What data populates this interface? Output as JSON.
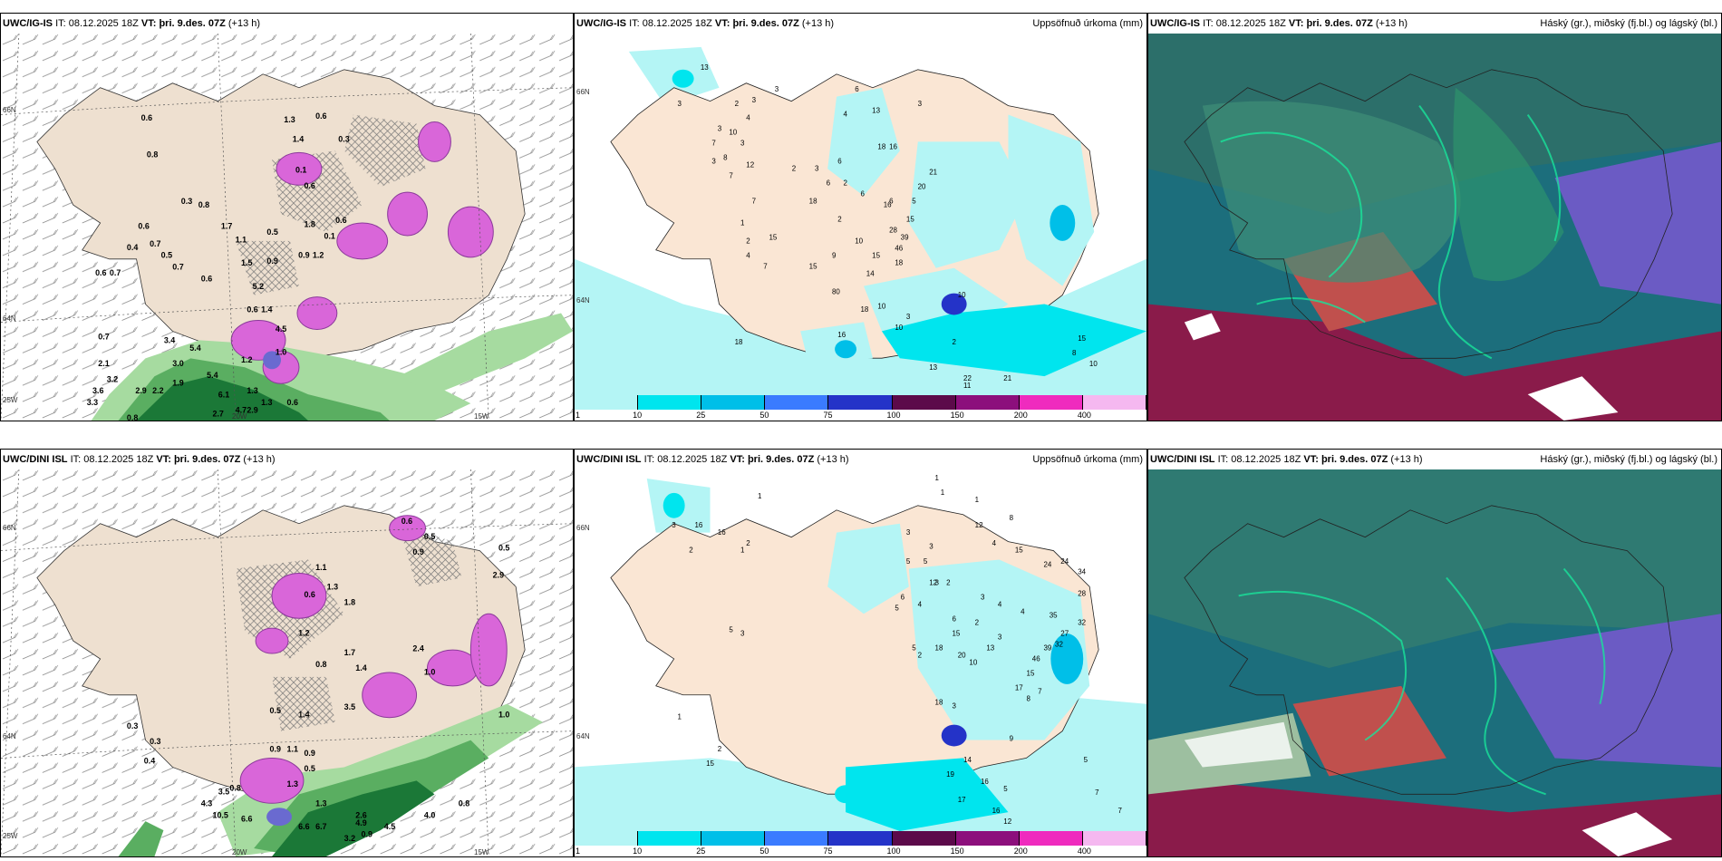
{
  "panels": [
    {
      "id": "p1",
      "model": "UWC/IG-IS",
      "it_label": "IT:",
      "it": "08.12.2025 18Z",
      "vt_label": "VT:",
      "vt": "þri. 9.des. 07Z",
      "lead": "(+13 h)",
      "right": "",
      "axes": {
        "lat_top": "66N",
        "lat_mid": "64N",
        "lon_left": "25W",
        "lon_mid": "20W",
        "lon_right": "15W"
      }
    },
    {
      "id": "p2",
      "model": "UWC/IG-IS",
      "it_label": "IT:",
      "it": "08.12.2025 18Z",
      "vt_label": "VT:",
      "vt": "þri. 9.des. 07Z",
      "lead": "(+13 h)",
      "right": "Uppsöfnuð úrkoma (mm)",
      "axes": {
        "lat_top": "66N",
        "lat_mid": "64N"
      }
    },
    {
      "id": "p3",
      "model": "UWC/IG-IS",
      "it_label": "IT:",
      "it": "08.12.2025 18Z",
      "vt_label": "VT:",
      "vt": "þri. 9.des. 07Z",
      "lead": "(+13 h)",
      "right": "Háský (gr.), miðský (fj.bl.) og lágský (bl.)"
    },
    {
      "id": "p4",
      "model": "UWC/DINI ISL",
      "it_label": "IT:",
      "it": "08.12.2025 18Z",
      "vt_label": "VT:",
      "vt": "þri. 9.des. 07Z",
      "lead": "(+13 h)",
      "right": "",
      "axes": {
        "lat_top": "66N",
        "lat_mid": "64N",
        "lon_left": "25W",
        "lon_mid": "20W",
        "lon_right": "15W"
      }
    },
    {
      "id": "p5",
      "model": "UWC/DINI ISL",
      "it_label": "IT:",
      "it": "08.12.2025 18Z",
      "vt_label": "VT:",
      "vt": "þri. 9.des. 07Z",
      "lead": "(+13 h)",
      "right": "Uppsöfnuð úrkoma (mm)",
      "axes": {
        "lat_top": "66N",
        "lat_mid": "64N"
      }
    },
    {
      "id": "p6",
      "model": "UWC/DINI ISL",
      "it_label": "IT:",
      "it": "08.12.2025 18Z",
      "vt_label": "VT:",
      "vt": "þri. 9.des. 07Z",
      "lead": "(+13 h)",
      "right": "Háský (gr.), miðský (fj.bl.) og lágský (bl.)"
    }
  ],
  "colorbar": {
    "labels": [
      "1",
      "10",
      "25",
      "50",
      "75",
      "100",
      "150",
      "200",
      "400"
    ],
    "colors": [
      "#b4f5f5",
      "#00e5ee",
      "#00bfe8",
      "#3a7bff",
      "#2433c8",
      "#5c0a4a",
      "#8c0f7c",
      "#ef2bbe",
      "#f5b8f0"
    ]
  },
  "precip_labels": {
    "p1": [
      [
        "0.6",
        0.245,
        0.225
      ],
      [
        "0.8",
        0.255,
        0.32
      ],
      [
        "0.3",
        0.315,
        0.44
      ],
      [
        "0.8",
        0.345,
        0.45
      ],
      [
        "1.7",
        0.385,
        0.505
      ],
      [
        "1.1",
        0.41,
        0.54
      ],
      [
        "1.5",
        0.42,
        0.6
      ],
      [
        "0.9",
        0.465,
        0.595
      ],
      [
        "5.2",
        0.44,
        0.66
      ],
      [
        "0.6",
        0.43,
        0.72
      ],
      [
        "1.4",
        0.455,
        0.72
      ],
      [
        "4.5",
        0.48,
        0.77
      ],
      [
        "0.6",
        0.53,
        0.4
      ],
      [
        "1.8",
        0.53,
        0.5
      ],
      [
        "0.5",
        0.465,
        0.52
      ],
      [
        "0.9",
        0.52,
        0.58
      ],
      [
        "1.2",
        0.545,
        0.58
      ],
      [
        "0.1",
        0.565,
        0.53
      ],
      [
        "0.6",
        0.585,
        0.49
      ],
      [
        "0.3",
        0.59,
        0.28
      ],
      [
        "1.3",
        0.495,
        0.23
      ],
      [
        "1.4",
        0.51,
        0.28
      ],
      [
        "0.1",
        0.515,
        0.36
      ],
      [
        "0.6",
        0.55,
        0.22
      ],
      [
        "0.6",
        0.24,
        0.505
      ],
      [
        "0.7",
        0.26,
        0.55
      ],
      [
        "0.5",
        0.28,
        0.58
      ],
      [
        "0.7",
        0.3,
        0.61
      ],
      [
        "0.6",
        0.35,
        0.64
      ],
      [
        "0.6",
        0.165,
        0.625
      ],
      [
        "0.7",
        0.19,
        0.625
      ],
      [
        "0.4",
        0.22,
        0.56
      ],
      [
        "0.7",
        0.17,
        0.79
      ],
      [
        "3.4",
        0.285,
        0.8
      ],
      [
        "5.4",
        0.33,
        0.82
      ],
      [
        "3.0",
        0.3,
        0.86
      ],
      [
        "5.4",
        0.36,
        0.89
      ],
      [
        "6.1",
        0.38,
        0.94
      ],
      [
        "4.7",
        0.41,
        0.98
      ],
      [
        "2.7",
        0.37,
        0.99
      ],
      [
        "2.1",
        0.17,
        0.86
      ],
      [
        "3.2",
        0.185,
        0.9
      ],
      [
        "3.6",
        0.16,
        0.93
      ],
      [
        "3.3",
        0.15,
        0.96
      ],
      [
        "2.9",
        0.235,
        0.93
      ],
      [
        "2.2",
        0.265,
        0.93
      ],
      [
        "1.9",
        0.3,
        0.91
      ],
      [
        "0.8",
        0.22,
        1.0
      ],
      [
        "1.3",
        0.43,
        0.93
      ],
      [
        "2.9",
        0.43,
        0.98
      ],
      [
        "1.3",
        0.455,
        0.96
      ],
      [
        "1.2",
        0.42,
        0.85
      ],
      [
        "1.0",
        0.48,
        0.83
      ],
      [
        "0.6",
        0.5,
        0.96
      ]
    ],
    "p2": [
      [
        "3",
        0.6,
        0.2
      ],
      [
        "13",
        0.22,
        0.1
      ],
      [
        "3",
        0.18,
        0.2
      ],
      [
        "2",
        0.28,
        0.2
      ],
      [
        "3",
        0.24,
        0.36
      ],
      [
        "3",
        0.31,
        0.19
      ],
      [
        "4",
        0.3,
        0.24
      ],
      [
        "3",
        0.35,
        0.16
      ],
      [
        "6",
        0.49,
        0.16
      ],
      [
        "4",
        0.47,
        0.23
      ],
      [
        "13",
        0.52,
        0.22
      ],
      [
        "3",
        0.25,
        0.27
      ],
      [
        "7",
        0.24,
        0.31
      ],
      [
        "8",
        0.26,
        0.35
      ],
      [
        "10",
        0.27,
        0.28
      ],
      [
        "3",
        0.29,
        0.31
      ],
      [
        "12",
        0.3,
        0.37
      ],
      [
        "7",
        0.27,
        0.4
      ],
      [
        "7",
        0.31,
        0.47
      ],
      [
        "2",
        0.38,
        0.38
      ],
      [
        "3",
        0.42,
        0.38
      ],
      [
        "6",
        0.44,
        0.42
      ],
      [
        "2",
        0.47,
        0.42
      ],
      [
        "18",
        0.41,
        0.47
      ],
      [
        "6",
        0.46,
        0.36
      ],
      [
        "6",
        0.5,
        0.45
      ],
      [
        "18",
        0.53,
        0.32
      ],
      [
        "16",
        0.55,
        0.32
      ],
      [
        "2",
        0.46,
        0.52
      ],
      [
        "1",
        0.29,
        0.53
      ],
      [
        "15",
        0.34,
        0.57
      ],
      [
        "4",
        0.3,
        0.62
      ],
      [
        "7",
        0.33,
        0.65
      ],
      [
        "15",
        0.41,
        0.65
      ],
      [
        "9",
        0.45,
        0.62
      ],
      [
        "10",
        0.49,
        0.58
      ],
      [
        "2",
        0.3,
        0.58
      ],
      [
        "6",
        0.55,
        0.47
      ],
      [
        "16",
        0.54,
        0.48
      ],
      [
        "28",
        0.55,
        0.55
      ],
      [
        "39",
        0.57,
        0.57
      ],
      [
        "46",
        0.56,
        0.6
      ],
      [
        "18",
        0.56,
        0.64
      ],
      [
        "15",
        0.52,
        0.62
      ],
      [
        "14",
        0.51,
        0.67
      ],
      [
        "15",
        0.58,
        0.52
      ],
      [
        "21",
        0.62,
        0.39
      ],
      [
        "20",
        0.6,
        0.43
      ],
      [
        "5",
        0.59,
        0.47
      ],
      [
        "10",
        0.67,
        0.73
      ],
      [
        "3",
        0.58,
        0.79
      ],
      [
        "2",
        0.66,
        0.86
      ],
      [
        "10",
        0.53,
        0.76
      ],
      [
        "18",
        0.5,
        0.77
      ],
      [
        "16",
        0.46,
        0.84
      ],
      [
        "80",
        0.45,
        0.72
      ],
      [
        "10",
        0.56,
        0.82
      ],
      [
        "18",
        0.28,
        0.86
      ],
      [
        "13",
        0.62,
        0.93
      ],
      [
        "10",
        0.9,
        0.92
      ],
      [
        "15",
        0.88,
        0.85
      ],
      [
        "22",
        0.68,
        0.96
      ],
      [
        "21",
        0.75,
        0.96
      ],
      [
        "8",
        0.87,
        0.89
      ],
      [
        "11",
        0.68,
        0.98
      ]
    ],
    "p4": [
      [
        "0.6",
        0.7,
        0.14
      ],
      [
        "0.5",
        0.74,
        0.18
      ],
      [
        "0.9",
        0.72,
        0.22
      ],
      [
        "1.1",
        0.55,
        0.26
      ],
      [
        "1.3",
        0.57,
        0.31
      ],
      [
        "0.6",
        0.53,
        0.33
      ],
      [
        "1.8",
        0.6,
        0.35
      ],
      [
        "1.2",
        0.52,
        0.43
      ],
      [
        "1.7",
        0.6,
        0.48
      ],
      [
        "0.8",
        0.55,
        0.51
      ],
      [
        "1.4",
        0.62,
        0.52
      ],
      [
        "2.4",
        0.72,
        0.47
      ],
      [
        "1.0",
        0.74,
        0.53
      ],
      [
        "3.5",
        0.6,
        0.62
      ],
      [
        "0.5",
        0.47,
        0.63
      ],
      [
        "1.4",
        0.52,
        0.64
      ],
      [
        "0.9",
        0.47,
        0.73
      ],
      [
        "1.1",
        0.5,
        0.73
      ],
      [
        "0.9",
        0.53,
        0.74
      ],
      [
        "0.5",
        0.53,
        0.78
      ],
      [
        "1.0",
        0.87,
        0.64
      ],
      [
        "0.3",
        0.22,
        0.67
      ],
      [
        "0.4",
        0.25,
        0.76
      ],
      [
        "0.3",
        0.26,
        0.71
      ],
      [
        "1.3",
        0.5,
        0.82
      ],
      [
        "3.5",
        0.38,
        0.84
      ],
      [
        "4.3",
        0.35,
        0.87
      ],
      [
        "10.5",
        0.37,
        0.9
      ],
      [
        "0.8",
        0.4,
        0.83
      ],
      [
        "6.6",
        0.42,
        0.91
      ],
      [
        "6.6",
        0.52,
        0.93
      ],
      [
        "6.7",
        0.55,
        0.93
      ],
      [
        "4.9",
        0.62,
        0.92
      ],
      [
        "4.5",
        0.67,
        0.93
      ],
      [
        "3.2",
        0.6,
        0.96
      ],
      [
        "1.3",
        0.55,
        0.87
      ],
      [
        "0.9",
        0.63,
        0.95
      ],
      [
        "2.6",
        0.62,
        0.9
      ],
      [
        "4.0",
        0.74,
        0.9
      ],
      [
        "2.9",
        0.86,
        0.28
      ],
      [
        "0.5",
        0.87,
        0.21
      ],
      [
        "0.8",
        0.8,
        0.87
      ]
    ],
    "p5": [
      [
        "3",
        0.17,
        0.16
      ],
      [
        "16",
        0.21,
        0.16
      ],
      [
        "16",
        0.25,
        0.18
      ],
      [
        "2",
        0.2,
        0.23
      ],
      [
        "1",
        0.29,
        0.23
      ],
      [
        "2",
        0.3,
        0.21
      ],
      [
        "1",
        0.32,
        0.08
      ],
      [
        "1",
        0.63,
        0.03
      ],
      [
        "1",
        0.64,
        0.07
      ],
      [
        "12",
        0.7,
        0.16
      ],
      [
        "8",
        0.76,
        0.14
      ],
      [
        "4",
        0.73,
        0.21
      ],
      [
        "15",
        0.77,
        0.23
      ],
      [
        "24",
        0.82,
        0.27
      ],
      [
        "24",
        0.85,
        0.26
      ],
      [
        "34",
        0.88,
        0.29
      ],
      [
        "28",
        0.88,
        0.35
      ],
      [
        "32",
        0.88,
        0.43
      ],
      [
        "35",
        0.83,
        0.41
      ],
      [
        "27",
        0.85,
        0.46
      ],
      [
        "39",
        0.82,
        0.5
      ],
      [
        "32",
        0.84,
        0.49
      ],
      [
        "46",
        0.8,
        0.53
      ],
      [
        "15",
        0.79,
        0.57
      ],
      [
        "17",
        0.77,
        0.61
      ],
      [
        "18",
        0.63,
        0.65
      ],
      [
        "1",
        0.7,
        0.09
      ],
      [
        "3",
        0.62,
        0.22
      ],
      [
        "3",
        0.58,
        0.18
      ],
      [
        "5",
        0.58,
        0.26
      ],
      [
        "5",
        0.61,
        0.26
      ],
      [
        "12",
        0.62,
        0.32
      ],
      [
        "6",
        0.57,
        0.36
      ],
      [
        "5",
        0.56,
        0.39
      ],
      [
        "3",
        0.63,
        0.32
      ],
      [
        "2",
        0.65,
        0.32
      ],
      [
        "4",
        0.6,
        0.38
      ],
      [
        "6",
        0.66,
        0.42
      ],
      [
        "2",
        0.7,
        0.43
      ],
      [
        "4",
        0.74,
        0.38
      ],
      [
        "4",
        0.78,
        0.4
      ],
      [
        "3",
        0.71,
        0.36
      ],
      [
        "15",
        0.66,
        0.46
      ],
      [
        "18",
        0.63,
        0.5
      ],
      [
        "20",
        0.67,
        0.52
      ],
      [
        "3",
        0.74,
        0.47
      ],
      [
        "13",
        0.72,
        0.5
      ],
      [
        "5",
        0.59,
        0.5
      ],
      [
        "2",
        0.6,
        0.52
      ],
      [
        "10",
        0.69,
        0.54
      ],
      [
        "5",
        0.27,
        0.45
      ],
      [
        "3",
        0.29,
        0.46
      ],
      [
        "15",
        0.23,
        0.82
      ],
      [
        "2",
        0.25,
        0.78
      ],
      [
        "1",
        0.18,
        0.69
      ],
      [
        "3",
        0.66,
        0.66
      ],
      [
        "8",
        0.79,
        0.64
      ],
      [
        "7",
        0.81,
        0.62
      ],
      [
        "5",
        0.75,
        0.89
      ],
      [
        "9",
        0.76,
        0.75
      ],
      [
        "14",
        0.68,
        0.81
      ],
      [
        "19",
        0.65,
        0.85
      ],
      [
        "16",
        0.71,
        0.87
      ],
      [
        "17",
        0.67,
        0.92
      ],
      [
        "16",
        0.73,
        0.95
      ],
      [
        "12",
        0.75,
        0.98
      ],
      [
        "5",
        0.89,
        0.81
      ],
      [
        "7",
        0.91,
        0.9
      ],
      [
        "7",
        0.95,
        0.95
      ]
    ]
  }
}
